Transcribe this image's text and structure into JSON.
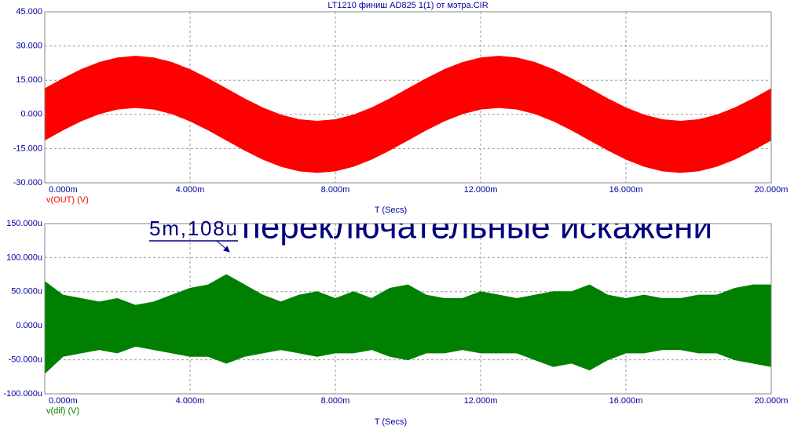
{
  "chart_data": [
    {
      "type": "band",
      "title": "LT1210 финиш AD825 1(1) от мэтра.CIR",
      "x_label": "T (Secs)",
      "x": [
        0,
        0.5,
        1,
        1.5,
        2,
        2.5,
        3,
        3.5,
        4,
        4.5,
        5,
        5.5,
        6,
        6.5,
        7,
        7.5,
        8,
        8.5,
        9,
        9.5,
        10,
        10.5,
        11,
        11.5,
        12,
        12.5,
        13,
        13.5,
        14,
        14.5,
        15,
        15.5,
        16,
        16.5,
        17,
        17.5,
        18,
        18.5,
        19,
        19.5,
        20
      ],
      "series": [
        {
          "name": "v(OUT) (V)",
          "color": "#ff0000",
          "values": [
            11.25,
            15.65,
            19.63,
            22.78,
            24.8,
            25.5,
            24.8,
            22.78,
            19.63,
            15.65,
            11.25,
            6.85,
            2.87,
            -0.28,
            -2.3,
            -3.0,
            -2.3,
            -0.28,
            2.87,
            6.85,
            11.25,
            15.65,
            19.63,
            22.78,
            24.8,
            25.5,
            24.8,
            22.78,
            19.63,
            15.65,
            11.25,
            6.85,
            2.87,
            -0.28,
            -2.3,
            -3.0,
            -2.3,
            -0.28,
            2.87,
            6.85,
            11.25
          ],
          "lower": [
            -11.25,
            -6.85,
            -2.87,
            0.28,
            2.3,
            3.0,
            2.3,
            0.28,
            -2.87,
            -6.85,
            -11.25,
            -15.65,
            -19.63,
            -22.78,
            -24.8,
            -25.5,
            -24.8,
            -22.78,
            -19.63,
            -15.65,
            -11.25,
            -6.85,
            -2.87,
            0.28,
            2.3,
            3.0,
            2.3,
            0.28,
            -2.87,
            -6.85,
            -11.25,
            -15.65,
            -19.63,
            -22.78,
            -24.8,
            -25.5,
            -24.8,
            -22.78,
            -19.63,
            -15.65,
            -11.25
          ]
        }
      ],
      "xlim": [
        0,
        20
      ],
      "xticks": [
        {
          "value": 0,
          "label": "0.000m"
        },
        {
          "value": 4,
          "label": "4.000m"
        },
        {
          "value": 8,
          "label": "8.000m"
        },
        {
          "value": 12,
          "label": "12.000m"
        },
        {
          "value": 16,
          "label": "16.000m"
        },
        {
          "value": 20,
          "label": "20.000m"
        }
      ],
      "ylim": [
        -30,
        45
      ],
      "yticks": [
        {
          "value": 45,
          "label": "45.000"
        },
        {
          "value": 30,
          "label": "30.000"
        },
        {
          "value": 15,
          "label": "15.000"
        },
        {
          "value": 0,
          "label": "0.000"
        },
        {
          "value": -15,
          "label": "-15.000"
        },
        {
          "value": -30,
          "label": "-30.000"
        }
      ],
      "grid": true,
      "annotations": []
    },
    {
      "type": "band",
      "x_label": "T (Secs)",
      "x": [
        0,
        0.5,
        1,
        1.5,
        2,
        2.5,
        3,
        3.5,
        4,
        4.5,
        5,
        5.5,
        6,
        6.5,
        7,
        7.5,
        8,
        8.5,
        9,
        9.5,
        10,
        10.5,
        11,
        11.5,
        12,
        12.5,
        13,
        13.5,
        14,
        14.5,
        15,
        15.5,
        16,
        16.5,
        17,
        17.5,
        18,
        18.5,
        19,
        19.5,
        20
      ],
      "series": [
        {
          "name": "v(dif) (V)",
          "color": "#008000",
          "values": [
            65,
            45,
            40,
            35,
            40,
            30,
            35,
            45,
            55,
            60,
            75,
            60,
            45,
            35,
            45,
            50,
            40,
            50,
            40,
            55,
            60,
            45,
            40,
            40,
            50,
            45,
            40,
            45,
            50,
            50,
            60,
            45,
            40,
            45,
            40,
            40,
            45,
            45,
            55,
            60,
            60
          ],
          "lower": [
            -70,
            -45,
            -40,
            -35,
            -40,
            -30,
            -35,
            -40,
            -45,
            -45,
            -55,
            -45,
            -40,
            -35,
            -40,
            -45,
            -40,
            -40,
            -35,
            -45,
            -50,
            -40,
            -40,
            -35,
            -40,
            -40,
            -40,
            -50,
            -60,
            -55,
            -65,
            -50,
            -40,
            -40,
            -35,
            -35,
            -40,
            -40,
            -50,
            -55,
            -60
          ]
        }
      ],
      "xlim": [
        0,
        20
      ],
      "xticks": [
        {
          "value": 0,
          "label": "0.000m"
        },
        {
          "value": 4,
          "label": "4.000m"
        },
        {
          "value": 8,
          "label": "8.000m"
        },
        {
          "value": 12,
          "label": "12.000m"
        },
        {
          "value": 16,
          "label": "16.000m"
        },
        {
          "value": 20,
          "label": "20.000m"
        }
      ],
      "ylim": [
        -100,
        150
      ],
      "yticks": [
        {
          "value": 150,
          "label": "150.000u"
        },
        {
          "value": 100,
          "label": "100.000u"
        },
        {
          "value": 50,
          "label": "50.000u"
        },
        {
          "value": 0,
          "label": "0.000u"
        },
        {
          "value": -50,
          "label": "-50.000u"
        },
        {
          "value": -100,
          "label": "-100.000u"
        }
      ],
      "grid": true,
      "annotations": [
        {
          "text": "5m,108u"
        },
        {
          "text": "переключательные искажени"
        }
      ]
    }
  ]
}
